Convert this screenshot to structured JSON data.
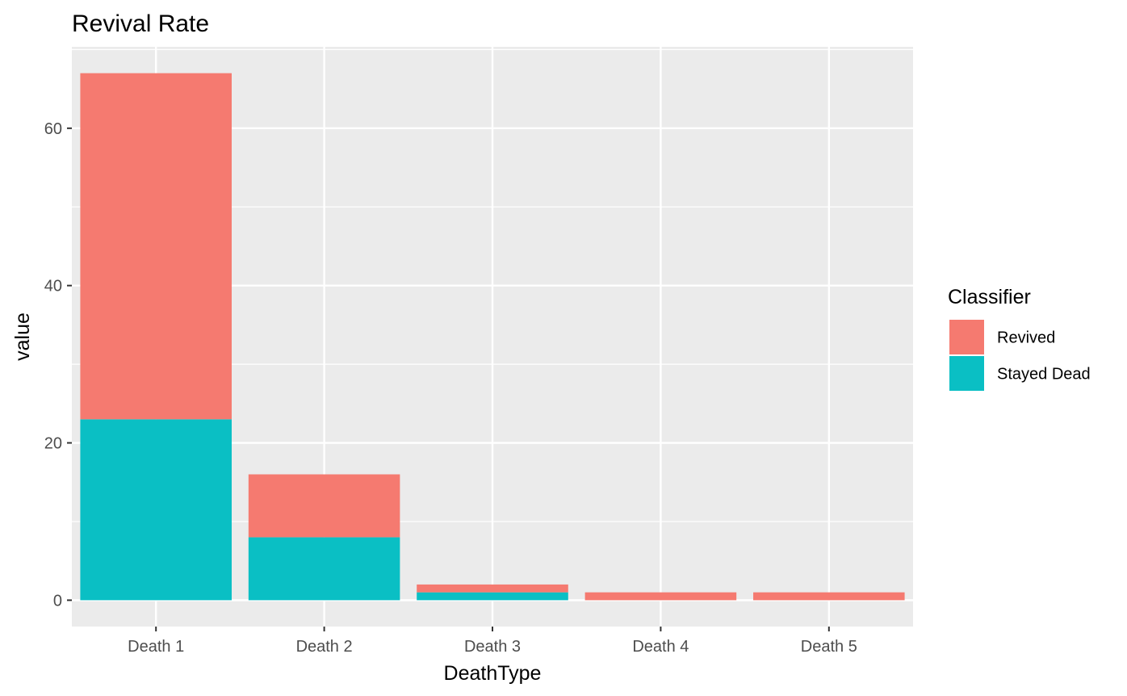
{
  "chart_data": {
    "type": "bar",
    "stacked": true,
    "title": "Revival Rate",
    "xlabel": "DeathType",
    "ylabel": "value",
    "categories": [
      "Death 1",
      "Death 2",
      "Death 3",
      "Death 4",
      "Death 5"
    ],
    "series": [
      {
        "name": "Stayed Dead",
        "values": [
          23,
          8,
          1,
          0,
          0
        ],
        "color": "#0abfc4"
      },
      {
        "name": "Revived",
        "values": [
          44,
          8,
          1,
          1,
          1
        ],
        "color": "#f57a70"
      }
    ],
    "ylim": [
      -3.35,
      70.35
    ],
    "yticks": [
      0,
      20,
      40,
      60
    ],
    "grid": true,
    "panel_background": "#ebebeb",
    "legend": {
      "title": "Classifier",
      "position": "right",
      "entries": [
        "Revived",
        "Stayed Dead"
      ]
    }
  }
}
